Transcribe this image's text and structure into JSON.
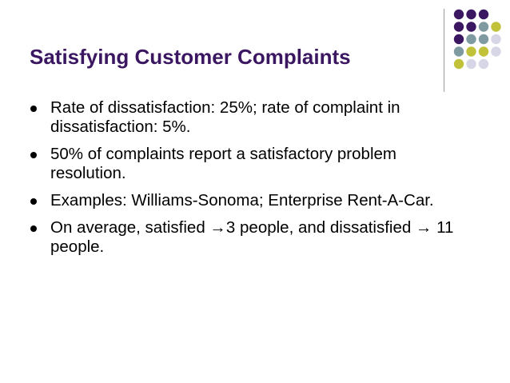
{
  "slide": {
    "title": "Satisfying Customer Complaints",
    "bullets": [
      {
        "text": "Rate of dissatisfaction: 25%; rate of complaint in dissatisfaction: 5%."
      },
      {
        "text": "50% of complaints report a satisfactory problem resolution."
      },
      {
        "text": "Examples: Williams-Sonoma; Enterprise Rent-A-Car."
      },
      {
        "text": "On average, satisfied →3 people, and dissatisfied → 11 people."
      }
    ]
  },
  "decoration": {
    "icon": "dot-grid-icon",
    "colors": {
      "purple": "#3b1762",
      "gray_teal": "#7f9aa0",
      "olive": "#c2c23a",
      "light": "#d6d6e6"
    },
    "grid": [
      [
        "purple",
        "purple",
        "purple",
        "none"
      ],
      [
        "purple",
        "purple",
        "gray_teal",
        "olive"
      ],
      [
        "purple",
        "gray_teal",
        "gray_teal",
        "light"
      ],
      [
        "gray_teal",
        "olive",
        "olive",
        "light"
      ],
      [
        "olive",
        "light",
        "light",
        "none"
      ]
    ]
  },
  "theme": {
    "title_color": "#3b1762",
    "text_color": "#000000",
    "divider_color": "#9a9a9a"
  }
}
